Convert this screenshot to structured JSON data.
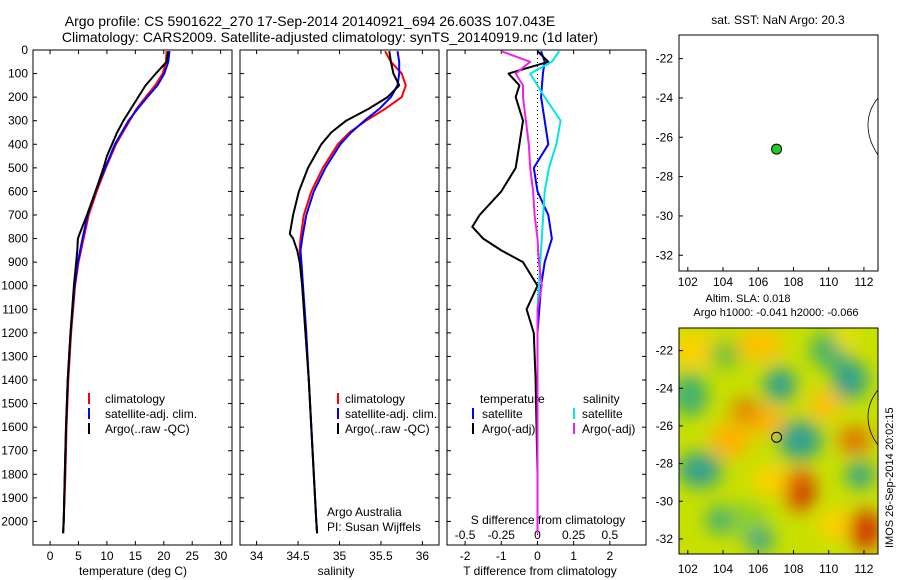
{
  "header": {
    "title_line1": "Argo profile: CS 5901622_270 17-Sep-2014 20140921_694 26.603S 107.043E",
    "title_line2": "Climatology: CARS2009. Satellite-adjusted climatology: synTS_20140919.nc (1d later)"
  },
  "footer_stamp": "IMOS 26-Sep-2014 20:02:15",
  "colors": {
    "climatology": "#ff0000",
    "satellite": "#0000ff",
    "argo": "#000000",
    "sal_satellite": "#00e5e5",
    "sal_argo": "#ee22ee",
    "float_marker": "#22cc22"
  },
  "chart_data": [
    {
      "id": "temperature",
      "type": "line",
      "xlabel": "temperature (deg C)",
      "ylabel": "",
      "xlim": [
        -3,
        32
      ],
      "ylim": [
        2100,
        0
      ],
      "xticks": [
        "0",
        "5",
        "10",
        "15",
        "20",
        "25",
        "30"
      ],
      "yticks": [
        "0",
        "100",
        "200",
        "300",
        "400",
        "500",
        "600",
        "700",
        "800",
        "900",
        "1000",
        "1100",
        "1200",
        "1300",
        "1400",
        "1500",
        "1600",
        "1700",
        "1800",
        "1900",
        "2000"
      ],
      "legend": [
        "climatology",
        "satellite-adj. clim.",
        "Argo(..raw -QC)"
      ],
      "series": [
        {
          "name": "climatology",
          "color": "#ff0000",
          "depth": [
            5,
            50,
            100,
            150,
            200,
            250,
            300,
            350,
            400,
            500,
            600,
            700,
            800,
            900,
            1000,
            1200,
            1400,
            1600,
            1800,
            2000,
            2050
          ],
          "values": [
            20.5,
            20.4,
            19.8,
            18.5,
            16.8,
            15.2,
            14.0,
            12.8,
            11.6,
            9.8,
            8.2,
            6.8,
            5.9,
            5.0,
            4.4,
            3.7,
            3.2,
            2.9,
            2.7,
            2.4,
            2.3
          ]
        },
        {
          "name": "satellite-adj. clim.",
          "color": "#0000ff",
          "depth": [
            5,
            50,
            100,
            150,
            200,
            250,
            300,
            350,
            400,
            500,
            600,
            700,
            800,
            900,
            1000,
            1200,
            1400,
            1600,
            1800,
            2000,
            2050
          ],
          "values": [
            21.0,
            20.8,
            20.1,
            18.9,
            17.1,
            15.4,
            13.8,
            12.6,
            11.4,
            9.7,
            8.0,
            6.6,
            5.7,
            4.9,
            4.3,
            3.6,
            3.1,
            2.8,
            2.6,
            2.4,
            2.3
          ]
        },
        {
          "name": "Argo(..raw -QC)",
          "color": "#000000",
          "depth": [
            5,
            50,
            100,
            150,
            200,
            250,
            300,
            350,
            400,
            450,
            500,
            600,
            700,
            780,
            800,
            850,
            900,
            1000,
            1200,
            1400,
            1600,
            1800,
            2000,
            2050
          ],
          "values": [
            20.8,
            20.5,
            18.6,
            16.8,
            15.5,
            14.2,
            12.9,
            11.8,
            10.9,
            10.0,
            9.4,
            8.0,
            6.5,
            5.2,
            4.9,
            4.8,
            4.6,
            4.2,
            3.6,
            3.1,
            2.8,
            2.6,
            2.4,
            2.3
          ]
        }
      ]
    },
    {
      "id": "salinity",
      "type": "line",
      "xlabel": "salinity",
      "ylabel": "",
      "xlim": [
        33.8,
        36.2
      ],
      "ylim": [
        2100,
        0
      ],
      "xticks": [
        "34",
        "34.5",
        "35",
        "35.5",
        "36"
      ],
      "legend": [
        "climatology",
        "satellite-adj. clim.",
        "Argo(..raw -QC)"
      ],
      "annotation": [
        "Argo Australia",
        "PI: Susan Wijffels"
      ],
      "series": [
        {
          "name": "climatology",
          "color": "#ff0000",
          "depth": [
            5,
            50,
            100,
            150,
            200,
            250,
            300,
            350,
            400,
            500,
            600,
            700,
            800,
            850,
            900,
            1000,
            1200,
            1400,
            1600,
            1800,
            2000,
            2050
          ],
          "values": [
            35.55,
            35.62,
            35.75,
            35.8,
            35.75,
            35.55,
            35.32,
            35.12,
            34.98,
            34.8,
            34.66,
            34.57,
            34.53,
            34.52,
            34.53,
            34.55,
            34.59,
            34.63,
            34.66,
            34.69,
            34.72,
            34.73
          ]
        },
        {
          "name": "satellite-adj. clim.",
          "color": "#0000ff",
          "depth": [
            5,
            50,
            100,
            150,
            200,
            250,
            300,
            350,
            400,
            500,
            600,
            700,
            800,
            850,
            900,
            1000,
            1200,
            1400,
            1600,
            1800,
            2000,
            2050
          ],
          "values": [
            35.7,
            35.72,
            35.72,
            35.7,
            35.62,
            35.48,
            35.3,
            35.14,
            35.01,
            34.83,
            34.69,
            34.6,
            34.55,
            34.53,
            34.54,
            34.56,
            34.6,
            34.63,
            34.66,
            34.69,
            34.72,
            34.73
          ]
        },
        {
          "name": "Argo(..raw -QC)",
          "color": "#000000",
          "depth": [
            5,
            50,
            100,
            150,
            200,
            250,
            300,
            350,
            400,
            500,
            600,
            700,
            780,
            800,
            850,
            900,
            1000,
            1200,
            1400,
            1600,
            1800,
            2000,
            2050
          ],
          "values": [
            35.6,
            35.62,
            35.65,
            35.72,
            35.58,
            35.35,
            35.08,
            34.9,
            34.78,
            34.62,
            34.51,
            34.44,
            34.4,
            34.44,
            34.49,
            34.52,
            34.55,
            34.59,
            34.63,
            34.66,
            34.69,
            34.72,
            34.73
          ]
        }
      ]
    },
    {
      "id": "difference",
      "type": "line",
      "xlabel": "T difference from climatology",
      "x2label": "S difference from climatology",
      "xlim": [
        -2.5,
        3.0
      ],
      "ylim": [
        2100,
        0
      ],
      "xticks": [
        "-2",
        "-1",
        "0",
        "1",
        "2"
      ],
      "x2ticks": [
        "-0.5",
        "-0.25",
        "0",
        "0.25",
        "0.5"
      ],
      "legend_t": [
        "temperature",
        "satellite",
        "Argo(-adj)"
      ],
      "legend_s": [
        "salinity",
        "satellite",
        "Argo(-adj)"
      ],
      "series": [
        {
          "name": "satellite",
          "kind": "T",
          "color": "#0000ff",
          "depth": [
            5,
            50,
            100,
            200,
            300,
            400,
            500,
            600,
            700,
            800,
            900,
            1000,
            1200,
            1600,
            2050
          ],
          "values": [
            0.1,
            0.2,
            0.15,
            0.1,
            0.2,
            0.3,
            -0.1,
            0.0,
            0.3,
            0.4,
            0.2,
            0.1,
            0.0,
            0.0,
            0.0
          ]
        },
        {
          "name": "Argo(-adj)",
          "kind": "T",
          "color": "#000000",
          "depth": [
            5,
            50,
            100,
            150,
            200,
            300,
            400,
            500,
            600,
            700,
            750,
            800,
            850,
            900,
            950,
            1000,
            1100,
            1200,
            1400,
            1800,
            2050
          ],
          "values": [
            0.0,
            0.3,
            -0.8,
            -0.5,
            -0.6,
            -0.4,
            -0.5,
            -0.6,
            -1.0,
            -1.6,
            -1.8,
            -1.5,
            -1.0,
            -0.4,
            -0.2,
            0.0,
            -0.3,
            -0.1,
            -0.05,
            0.0,
            0.0
          ]
        },
        {
          "name": "satellite",
          "kind": "S",
          "color": "#00e5e5",
          "depth": [
            5,
            50,
            100,
            150,
            200,
            300,
            400,
            500,
            600,
            700,
            800,
            900,
            1000,
            1100,
            1200,
            1400,
            1600,
            2050
          ],
          "values": [
            0.15,
            0.1,
            -0.05,
            0.0,
            0.05,
            0.16,
            0.13,
            0.08,
            0.05,
            0.04,
            0.03,
            0.02,
            0.01,
            0.0,
            0.0,
            0.0,
            0.0,
            0.0
          ]
        },
        {
          "name": "Argo(-adj)",
          "kind": "S",
          "color": "#ee22ee",
          "depth": [
            5,
            50,
            100,
            150,
            200,
            300,
            400,
            500,
            600,
            700,
            800,
            900,
            1000,
            1100,
            1200,
            1400,
            2050
          ],
          "values": [
            -0.25,
            -0.05,
            -0.15,
            -0.1,
            -0.1,
            -0.08,
            -0.06,
            -0.05,
            -0.03,
            -0.02,
            0.0,
            0.01,
            0.03,
            0.0,
            0.0,
            0.0,
            0.0
          ]
        }
      ]
    },
    {
      "id": "sst_map",
      "type": "scatter",
      "title": "sat. SST: NaN Argo: 20.3",
      "xlim": [
        101.5,
        112.8
      ],
      "ylim": [
        -32.8,
        -20.8
      ],
      "xticks": [
        "102",
        "104",
        "106",
        "108",
        "110",
        "112"
      ],
      "yticks": [
        "-22",
        "-24",
        "-26",
        "-28",
        "-30",
        "-32"
      ],
      "points": [
        {
          "x": 107.04,
          "y": -26.6
        }
      ]
    },
    {
      "id": "sla_map",
      "type": "heatmap",
      "title_line1": "Altim. SLA: 0.018",
      "title_line2": "Argo h1000: -0.041 h2000: -0.066",
      "xlim": [
        101.5,
        112.8
      ],
      "ylim": [
        -32.8,
        -20.8
      ],
      "xticks": [
        "102",
        "104",
        "106",
        "108",
        "110",
        "112"
      ],
      "yticks": [
        "-22",
        "-24",
        "-26",
        "-28",
        "-30",
        "-32"
      ],
      "points": [
        {
          "x": 107.04,
          "y": -26.6
        }
      ]
    }
  ]
}
